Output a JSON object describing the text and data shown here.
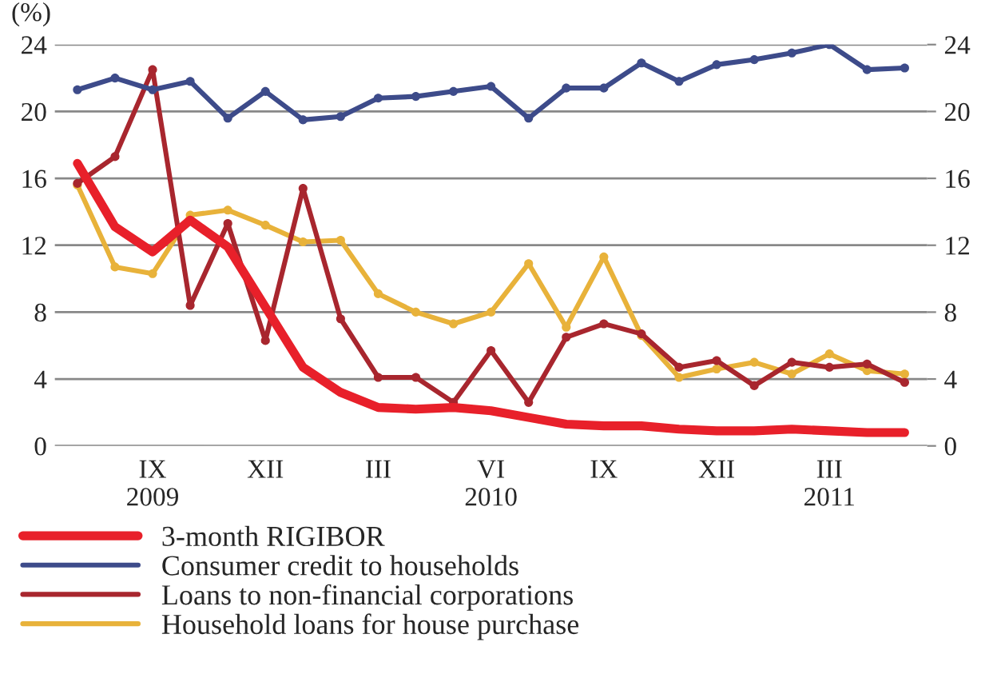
{
  "chart_data": {
    "type": "line",
    "ylabel": "(%)",
    "categories": [
      null,
      null,
      "IX\n2009",
      null,
      null,
      "XII",
      null,
      null,
      "III",
      null,
      null,
      "VI\n2010",
      null,
      null,
      "IX",
      null,
      null,
      "XII",
      null,
      null,
      "III\n2011",
      null,
      null
    ],
    "series": [
      {
        "name": "3-month RIGIBOR",
        "color": "#e8202a",
        "marker": "none",
        "values": [
          16.9,
          13.1,
          11.6,
          13.5,
          11.9,
          8.3,
          4.7,
          3.2,
          2.3,
          2.2,
          2.3,
          2.1,
          1.7,
          1.3,
          1.2,
          1.2,
          1.0,
          0.9,
          0.9,
          1.0,
          0.9,
          0.8,
          0.8
        ]
      },
      {
        "name": "Consumer credit to households",
        "color": "#3d4b8a",
        "marker": "circle",
        "values": [
          21.3,
          22.0,
          21.3,
          21.8,
          19.6,
          21.2,
          19.5,
          19.7,
          20.8,
          20.9,
          21.2,
          21.5,
          19.6,
          21.4,
          21.4,
          22.9,
          21.8,
          22.8,
          23.1,
          23.5,
          24.0,
          22.5,
          22.6
        ]
      },
      {
        "name": "Loans to non-financial corporations",
        "color": "#a8262e",
        "marker": "circle",
        "values": [
          15.7,
          17.3,
          22.5,
          8.4,
          13.3,
          6.3,
          15.4,
          7.6,
          4.1,
          4.1,
          2.6,
          5.7,
          2.6,
          6.5,
          7.3,
          6.7,
          4.7,
          5.1,
          3.6,
          5.0,
          4.7,
          4.9,
          3.8
        ]
      },
      {
        "name": "Household loans for house purchase",
        "color": "#e8b23a",
        "marker": "circle",
        "values": [
          15.6,
          10.7,
          10.3,
          13.8,
          14.1,
          13.2,
          12.2,
          12.3,
          9.1,
          8.0,
          7.3,
          8.0,
          10.9,
          7.1,
          11.3,
          6.6,
          4.1,
          4.6,
          5.0,
          4.3,
          5.5,
          4.5,
          4.3
        ]
      }
    ],
    "ylim": [
      0,
      24
    ],
    "yticks": [
      0,
      4,
      8,
      12,
      16,
      20,
      24
    ],
    "y2lim": [
      0,
      24
    ],
    "y2ticks": [
      0,
      4,
      8,
      12,
      16,
      20,
      24
    ],
    "grid": "y",
    "legend": "bottom"
  }
}
